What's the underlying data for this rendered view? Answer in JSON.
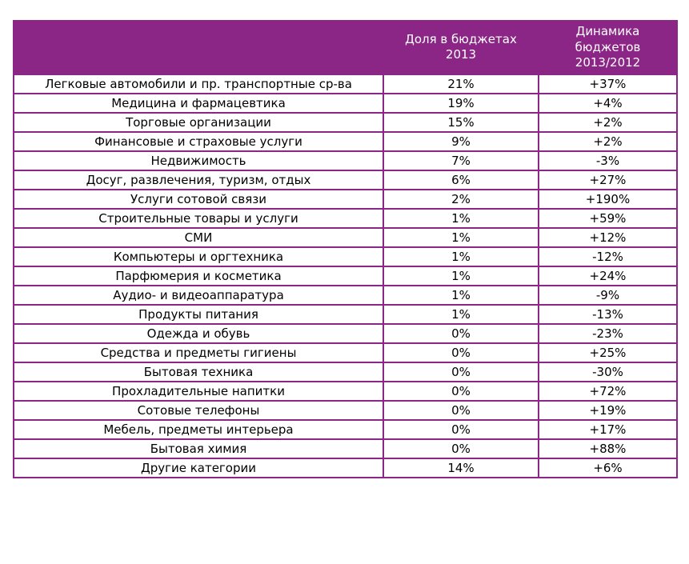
{
  "colors": {
    "header_bg": "#8C2686",
    "border": "#8C2686",
    "header_text": "#FFFFFF",
    "body_text": "#000000",
    "row_bg": "#FFFFFF"
  },
  "chart_data": {
    "type": "table",
    "title": "",
    "headers": [
      "",
      "Доля в бюджетах 2013",
      "Динамика бюджетов 2013/2012"
    ],
    "rows": [
      [
        "Легковые автомобили и пр. транспортные ср-ва",
        "21%",
        "+37%"
      ],
      [
        "Медицина и фармацевтика",
        "19%",
        "+4%"
      ],
      [
        "Торговые организации",
        "15%",
        "+2%"
      ],
      [
        "Финансовые и страховые услуги",
        "9%",
        "+2%"
      ],
      [
        "Недвижимость",
        "7%",
        "-3%"
      ],
      [
        "Досуг, развлечения, туризм, отдых",
        "6%",
        "+27%"
      ],
      [
        "Услуги сотовой связи",
        "2%",
        "+190%"
      ],
      [
        "Строительные товары и услуги",
        "1%",
        "+59%"
      ],
      [
        "СМИ",
        "1%",
        "+12%"
      ],
      [
        "Компьютеры и оргтехника",
        "1%",
        "-12%"
      ],
      [
        "Парфюмерия и косметика",
        "1%",
        "+24%"
      ],
      [
        "Аудио- и видеоаппаратура",
        "1%",
        "-9%"
      ],
      [
        "Продукты питания",
        "1%",
        "-13%"
      ],
      [
        "Одежда и обувь",
        "0%",
        "-23%"
      ],
      [
        "Средства и предметы гигиены",
        "0%",
        "+25%"
      ],
      [
        "Бытовая техника",
        "0%",
        "-30%"
      ],
      [
        "Прохладительные напитки",
        "0%",
        "+72%"
      ],
      [
        "Сотовые телефоны",
        "0%",
        "+19%"
      ],
      [
        "Мебель, предметы интерьера",
        "0%",
        "+17%"
      ],
      [
        "Бытовая химия",
        "0%",
        "+88%"
      ],
      [
        "Другие категории",
        "14%",
        "+6%"
      ]
    ]
  }
}
